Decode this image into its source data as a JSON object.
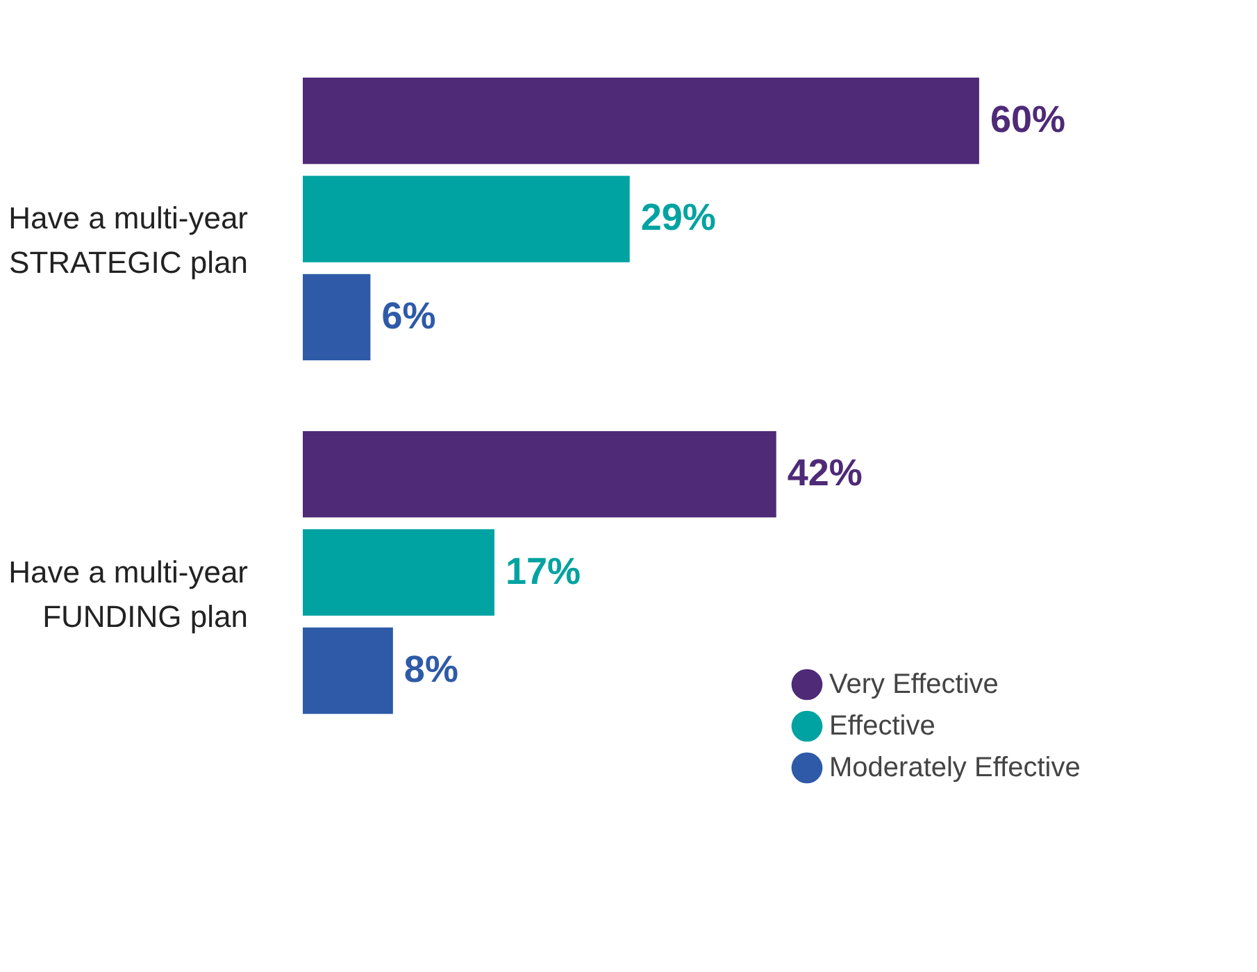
{
  "chart_data": {
    "type": "bar",
    "orientation": "horizontal",
    "categories": [
      "Have a multi-year STRATEGIC plan",
      "Have a multi-year FUNDING plan"
    ],
    "series": [
      {
        "name": "Very Effective",
        "color": "#4e2a77",
        "values": [
          60,
          42
        ],
        "value_labels": [
          "60%",
          "42%"
        ]
      },
      {
        "name": "Effective",
        "color": "#00a3a1",
        "values": [
          29,
          17
        ],
        "value_labels": [
          "29%",
          "17%"
        ]
      },
      {
        "name": "Moderately Effective",
        "color": "#2e5aa8",
        "values": [
          6,
          8
        ],
        "value_labels": [
          "6%",
          "8%"
        ]
      }
    ],
    "legend": "bottom right",
    "grid": false
  }
}
